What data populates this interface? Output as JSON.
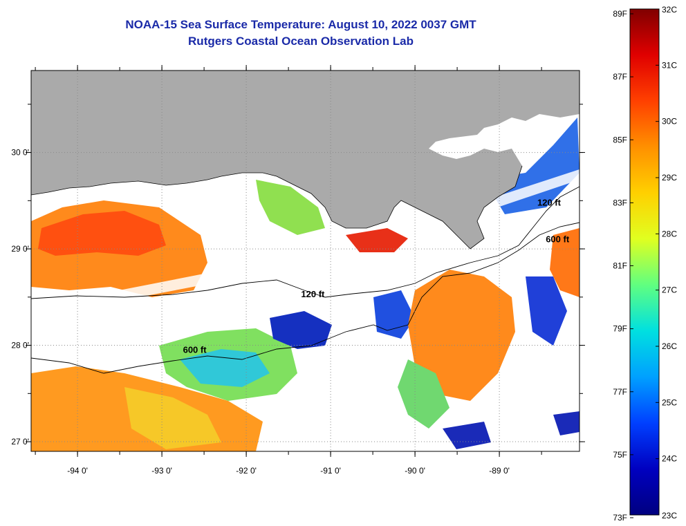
{
  "header": {
    "title": "NOAA-15 Sea Surface Temperature:  August 10, 2022 0037 GMT",
    "subtitle": "Rutgers Coastal Ocean Observation Lab"
  },
  "map": {
    "lon_range": [
      -94.55,
      -88.05
    ],
    "lat_range": [
      26.9,
      30.85
    ],
    "lon_ticks": [
      {
        "value": -94,
        "label": "-94 0'"
      },
      {
        "value": -93,
        "label": "-93 0'"
      },
      {
        "value": -92,
        "label": "-92 0'"
      },
      {
        "value": -91,
        "label": "-91 0'"
      },
      {
        "value": -90,
        "label": "-90 0'"
      },
      {
        "value": -89,
        "label": "-89 0'"
      }
    ],
    "lat_ticks": [
      {
        "value": 27,
        "label": "27 0'"
      },
      {
        "value": 28,
        "label": "28 0'"
      },
      {
        "value": 29,
        "label": "29 0'"
      },
      {
        "value": 30,
        "label": "30 0'"
      }
    ],
    "contour_labels": [
      {
        "text": "120 ft",
        "lon": -91.35,
        "lat": 28.5
      },
      {
        "text": "600 ft",
        "lon": -92.75,
        "lat": 27.92
      },
      {
        "text": "120 ft",
        "lon": -88.55,
        "lat": 29.45
      },
      {
        "text": "600 ft",
        "lon": -88.45,
        "lat": 29.07
      }
    ],
    "colors": {
      "land": "#aaaaaa",
      "no_data": "#ffffff",
      "grid": "#888888"
    }
  },
  "colorbar": {
    "celsius_labels": [
      "32C",
      "31C",
      "30C",
      "29C",
      "28C",
      "27C",
      "26C",
      "25C",
      "24C",
      "23C"
    ],
    "fahrenheit_labels": [
      "89F",
      "87F",
      "85F",
      "83F",
      "81F",
      "79F",
      "77F",
      "75F",
      "73F"
    ],
    "celsius_range": [
      23,
      32
    ],
    "fahrenheit_range": [
      73,
      89
    ],
    "stops": [
      "#800000",
      "#e00000",
      "#ff4000",
      "#ff9000",
      "#ffd000",
      "#e0ff20",
      "#60ff80",
      "#00e0e0",
      "#00a0ff",
      "#0040ff",
      "#0000c0",
      "#000080"
    ]
  }
}
